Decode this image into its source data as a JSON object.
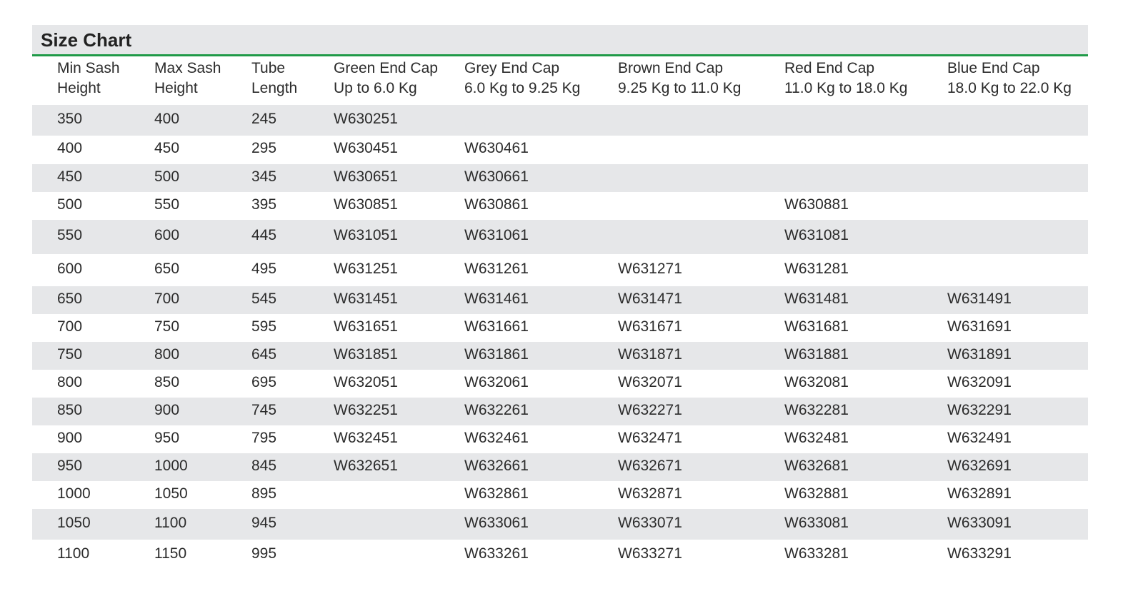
{
  "title": "Size Chart",
  "table": {
    "headers": [
      [
        "Min Sash",
        "Height"
      ],
      [
        "Max Sash",
        "Height"
      ],
      [
        "Tube",
        "Length"
      ],
      [
        "Green End Cap",
        "Up to 6.0 Kg"
      ],
      [
        "Grey End Cap",
        "6.0 Kg to 9.25 Kg"
      ],
      [
        "Brown End Cap",
        "9.25 Kg to 11.0 Kg"
      ],
      [
        "Red End Cap",
        "11.0 Kg to 18.0 Kg"
      ],
      [
        "Blue End Cap",
        "18.0 Kg to 22.0 Kg"
      ]
    ],
    "rows": [
      [
        350,
        400,
        245,
        "W630251",
        null,
        null,
        null,
        null
      ],
      [
        400,
        450,
        295,
        "W630451",
        "W630461",
        null,
        null,
        null
      ],
      [
        450,
        500,
        345,
        "W630651",
        "W630661",
        null,
        null,
        null
      ],
      [
        500,
        550,
        395,
        "W630851",
        "W630861",
        null,
        "W630881",
        null
      ],
      [
        550,
        600,
        445,
        "W631051",
        "W631061",
        null,
        "W631081",
        null
      ],
      [
        600,
        650,
        495,
        "W631251",
        "W631261",
        "W631271",
        "W631281",
        null
      ],
      [
        650,
        700,
        545,
        "W631451",
        "W631461",
        "W631471",
        "W631481",
        "W631491"
      ],
      [
        700,
        750,
        595,
        "W631651",
        "W631661",
        "W631671",
        "W631681",
        "W631691"
      ],
      [
        750,
        800,
        645,
        "W631851",
        "W631861",
        "W631871",
        "W631881",
        "W631891"
      ],
      [
        800,
        850,
        695,
        "W632051",
        "W632061",
        "W632071",
        "W632081",
        "W632091"
      ],
      [
        850,
        900,
        745,
        "W632251",
        "W632261",
        "W632271",
        "W632281",
        "W632291"
      ],
      [
        900,
        950,
        795,
        "W632451",
        "W632461",
        "W632471",
        "W632481",
        "W632491"
      ],
      [
        950,
        1000,
        845,
        "W632651",
        "W632661",
        "W632671",
        "W632681",
        "W632691"
      ],
      [
        1000,
        1050,
        895,
        null,
        "W632861",
        "W632871",
        "W632881",
        "W632891"
      ],
      [
        1050,
        1100,
        945,
        null,
        "W633061",
        "W633071",
        "W633081",
        "W633091"
      ],
      [
        1100,
        1150,
        995,
        null,
        "W633261",
        "W633271",
        "W633281",
        "W633291"
      ]
    ]
  }
}
